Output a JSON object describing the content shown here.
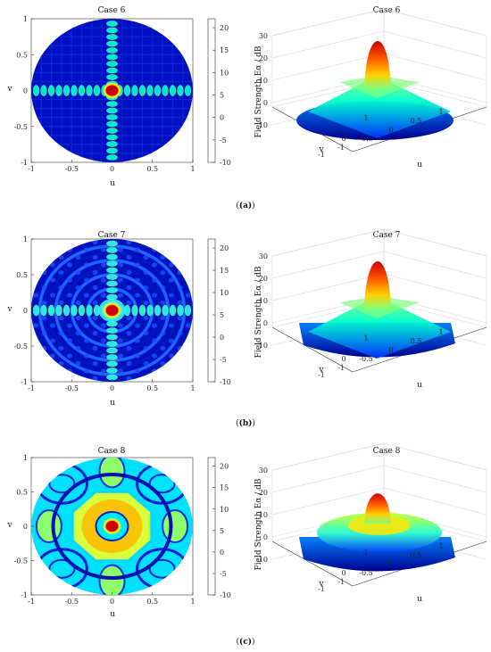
{
  "colorscale": [
    "#00007f",
    "#0000ff",
    "#007fff",
    "#00ffff",
    "#7fff7f",
    "#ffff00",
    "#ff7f00",
    "#ff0000",
    "#7f0000"
  ],
  "chart_data": [
    {
      "type": "heatmap",
      "title": "Case 6",
      "xlabel": "u",
      "ylabel": "v",
      "xticks": [
        "-1",
        "-0.5",
        "0",
        "0.5",
        "1"
      ],
      "yticks": [
        "1",
        "0.5",
        "0",
        "-0.5",
        "-1"
      ],
      "xlim": [
        -1,
        1
      ],
      "ylim": [
        -1,
        1
      ],
      "colorbar_ticks": [
        "20",
        "15",
        "10",
        "5",
        "0",
        "-5",
        "-10"
      ],
      "clim": [
        -10,
        22
      ],
      "surface": {
        "title": "Case 6",
        "zlabel": "Field Strength Eα / dB",
        "zticks": [
          "30",
          "20",
          "10",
          "0",
          "-10"
        ],
        "uticks": [
          "-1",
          "-0.5",
          "0",
          "0.5",
          "1"
        ],
        "vticks": [
          "1",
          "0",
          "-1"
        ],
        "ulabel": "u",
        "vlabel": "v",
        "zlim": [
          -10,
          30
        ]
      },
      "caption": "(a)"
    },
    {
      "type": "heatmap",
      "title": "Case 7",
      "xlabel": "u",
      "ylabel": "v",
      "xticks": [
        "-1",
        "-0.5",
        "0",
        "0.5",
        "1"
      ],
      "yticks": [
        "1",
        "0.5",
        "0",
        "-0.5",
        "-1"
      ],
      "xlim": [
        -1,
        1
      ],
      "ylim": [
        -1,
        1
      ],
      "colorbar_ticks": [
        "20",
        "15",
        "10",
        "5",
        "0",
        "-5",
        "-10"
      ],
      "clim": [
        -10,
        22
      ],
      "surface": {
        "title": "Case 7",
        "zlabel": "Field Strength Eα / dB",
        "zticks": [
          "30",
          "20",
          "10",
          "0",
          "-10"
        ],
        "uticks": [
          "-1",
          "-0.5",
          "0",
          "0.5",
          "1"
        ],
        "vticks": [
          "1",
          "0",
          "-1"
        ],
        "ulabel": "u",
        "vlabel": "v",
        "zlim": [
          -10,
          30
        ]
      },
      "caption": "(b)"
    },
    {
      "type": "heatmap",
      "title": "Case 8",
      "xlabel": "u",
      "ylabel": "v",
      "xticks": [
        "-1",
        "-0.5",
        "0",
        "0.5",
        "1"
      ],
      "yticks": [
        "1",
        "0.5",
        "0",
        "-0.5",
        "-1"
      ],
      "xlim": [
        -1,
        1
      ],
      "ylim": [
        -1,
        1
      ],
      "colorbar_ticks": [
        "20",
        "15",
        "10",
        "5",
        "0",
        "-5",
        "-10"
      ],
      "clim": [
        -10,
        22
      ],
      "surface": {
        "title": "Case 8",
        "zlabel": "Field Strength Eα / dB",
        "zticks": [
          "30",
          "20",
          "10",
          "0",
          "-10"
        ],
        "uticks": [
          "-1",
          "-0.5",
          "0",
          "0.5",
          "1"
        ],
        "vticks": [
          "1",
          "0",
          "-1"
        ],
        "ulabel": "u",
        "vlabel": "v",
        "zlim": [
          -10,
          30
        ]
      },
      "caption": "(c)"
    }
  ]
}
